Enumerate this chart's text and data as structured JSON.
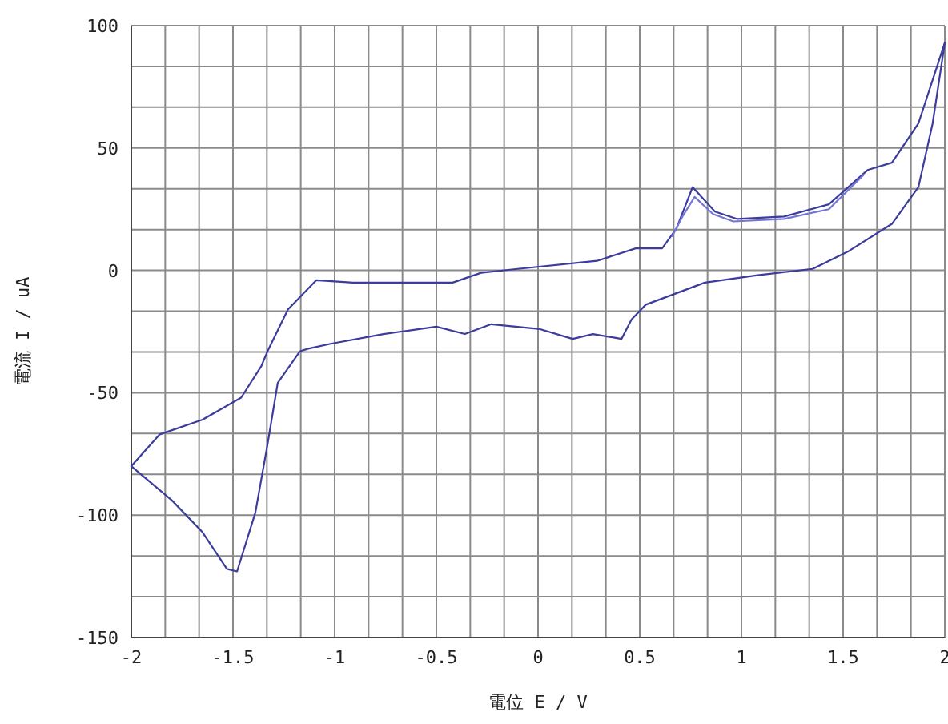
{
  "chart_data": {
    "type": "line",
    "xlabel": "電位 E / V",
    "ylabel": "電流 I / uA",
    "xlim": [
      -2,
      2
    ],
    "ylim": [
      -150,
      100
    ],
    "xticks": [
      -2,
      {
        "value": -1.8333,
        "label": null
      },
      {
        "value": -1.6667,
        "label": null
      },
      -1.5,
      {
        "value": -1.3333,
        "label": null
      },
      {
        "value": -1.1667,
        "label": null
      },
      -1,
      {
        "value": -0.8333,
        "label": null
      },
      {
        "value": -0.6667,
        "label": null
      },
      -0.5,
      {
        "value": -0.3333,
        "label": null
      },
      {
        "value": -0.1667,
        "label": null
      },
      0,
      {
        "value": 0.1667,
        "label": null
      },
      {
        "value": 0.3333,
        "label": null
      },
      0.5,
      {
        "value": 0.6667,
        "label": null
      },
      {
        "value": 0.8333,
        "label": null
      },
      1,
      {
        "value": 1.1667,
        "label": null
      },
      {
        "value": 1.3333,
        "label": null
      },
      1.5,
      {
        "value": 1.6667,
        "label": null
      },
      {
        "value": 1.8333,
        "label": null
      },
      2
    ],
    "yticks": [
      -150,
      {
        "value": -133.33,
        "label": null
      },
      {
        "value": -116.67,
        "label": null
      },
      -100,
      {
        "value": -83.33,
        "label": null
      },
      {
        "value": -66.67,
        "label": null
      },
      -50,
      {
        "value": -33.33,
        "label": null
      },
      {
        "value": -16.67,
        "label": null
      },
      0,
      {
        "value": 16.67,
        "label": null
      },
      {
        "value": 33.33,
        "label": null
      },
      50,
      {
        "value": 66.67,
        "label": null
      },
      {
        "value": 83.33,
        "label": null
      },
      100
    ],
    "grid": true,
    "marker": "none",
    "line_style": "solid",
    "series": [
      {
        "color": "#3c3c9c",
        "x": [
          -2,
          -1.86,
          -1.65,
          -1.46,
          -1.36,
          -1.33,
          -1.23,
          -1.09,
          -0.91,
          -0.42,
          -0.28,
          -0.1,
          0.29,
          0.48,
          0.61,
          0.68,
          0.76,
          0.87,
          0.98,
          1.21,
          1.43,
          1.62,
          1.74,
          1.87,
          2
        ],
        "values": [
          -80,
          -67,
          -61,
          -52,
          -39,
          -33,
          -16,
          -4,
          -5,
          -5,
          -1,
          0.6,
          3.9,
          9,
          9,
          17,
          34,
          24,
          21,
          22,
          27,
          41,
          44,
          60,
          93
        ]
      },
      {
        "color": "#3c3c9c",
        "x": [
          -2,
          -1.8,
          -1.65,
          -1.53,
          -1.48,
          -1.39,
          -1.33,
          -1.28,
          -1.17,
          -1.13,
          -1.02,
          -0.76,
          -0.5,
          -0.36,
          -0.23,
          0.01,
          0.17,
          0.27,
          0.41,
          0.46,
          0.53,
          0.82,
          1.08,
          1.35,
          1.53,
          1.74,
          1.87,
          1.94,
          2
        ],
        "values": [
          -80,
          -94,
          -107,
          -122,
          -123,
          -99,
          -71,
          -46,
          -33,
          -32,
          -30,
          -26,
          -23,
          -26,
          -22,
          -24,
          -28,
          -26,
          -28,
          -20,
          -14,
          -5,
          -2,
          0.6,
          8,
          19,
          34,
          60,
          93
        ]
      },
      {
        "color": "#7474d4",
        "x": [
          0.66,
          0.71,
          0.77,
          0.86,
          0.96,
          1.21,
          1.43,
          1.6
        ],
        "values": [
          14,
          22,
          30,
          23,
          20,
          21,
          25,
          39
        ]
      }
    ]
  }
}
